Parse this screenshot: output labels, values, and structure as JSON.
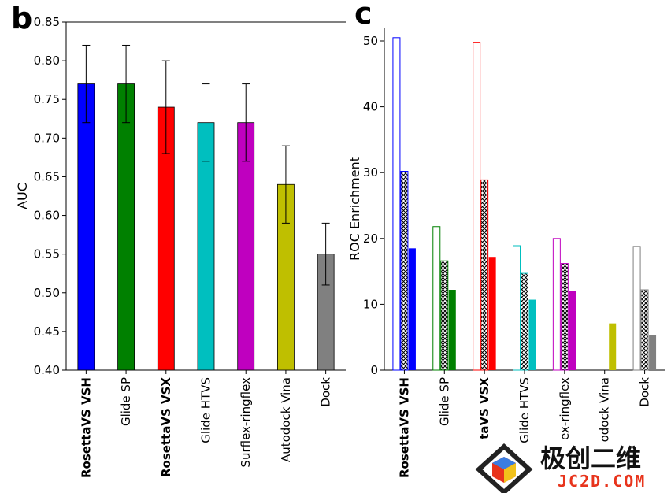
{
  "panel_b_letter": "b",
  "panel_c_letter": "c",
  "watermark": {
    "cn_text": "极创二维",
    "url_text": "JC2D.COM"
  },
  "chart_data": [
    {
      "panel": "b",
      "type": "bar",
      "title": "",
      "xlabel": "",
      "ylabel": "AUC",
      "ylim": [
        0.4,
        0.85
      ],
      "yticks": [
        "0.40",
        "0.45",
        "0.50",
        "0.55",
        "0.60",
        "0.65",
        "0.70",
        "0.75",
        "0.80",
        "0.85"
      ],
      "grid": false,
      "categories": [
        "RosettaVS VSH",
        "Glide SP",
        "RosettaVS VSX",
        "Glide HTVS",
        "Surflex-ringflex",
        "Autodock Vina",
        "Dock"
      ],
      "bold_categories": [
        "RosettaVS VSH",
        "RosettaVS VSX"
      ],
      "values": [
        0.77,
        0.77,
        0.74,
        0.72,
        0.72,
        0.64,
        0.55
      ],
      "error": [
        0.05,
        0.05,
        0.06,
        0.05,
        0.05,
        0.05,
        0.04
      ],
      "colors": [
        "#0000ff",
        "#008000",
        "#ff0000",
        "#00bfbf",
        "#bf00bf",
        "#bfbf00",
        "#808080"
      ]
    },
    {
      "panel": "c",
      "type": "bar",
      "title": "",
      "xlabel": "",
      "ylabel": "ROC Enrichment",
      "ylim": [
        0,
        52
      ],
      "yticks": [
        "0",
        "10",
        "20",
        "30",
        "40",
        "50"
      ],
      "grid": false,
      "categories": [
        "RosettaVS VSH",
        "Glide SP",
        "RosettaVS VSX",
        "Glide HTVS",
        "Surflex-ringflex",
        "Autodock Vina",
        "Dock"
      ],
      "tick_labels_shown": [
        "RosettaVS VSH",
        "Glide SP",
        "taVS VSX",
        "Glide HTVS",
        "ex-ringflex",
        "odock Vina",
        "Dock"
      ],
      "bold_categories": [
        "RosettaVS VSH",
        "taVS VSX"
      ],
      "colors": [
        "#0000ff",
        "#008000",
        "#ff0000",
        "#00bfbf",
        "#bf00bf",
        "#bfbf00",
        "#808080"
      ],
      "series": [
        {
          "name": "hollow",
          "style": "outline",
          "values": [
            50.5,
            21.8,
            49.8,
            18.9,
            20.0,
            0,
            18.8
          ]
        },
        {
          "name": "hatched",
          "style": "crosshatch",
          "values": [
            30.2,
            16.6,
            28.9,
            14.7,
            16.2,
            0,
            12.2
          ]
        },
        {
          "name": "solid",
          "style": "solid",
          "values": [
            18.5,
            12.2,
            17.2,
            10.7,
            12.0,
            7.1,
            5.3
          ]
        }
      ]
    }
  ]
}
